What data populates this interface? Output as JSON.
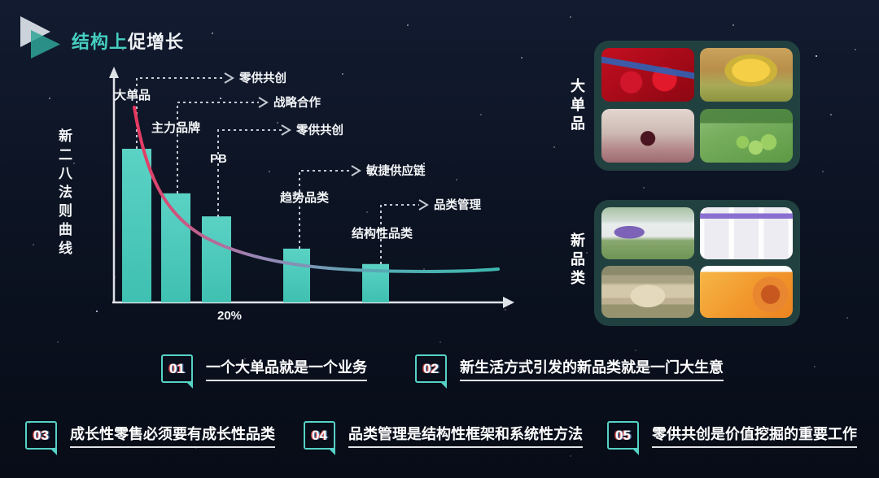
{
  "title": {
    "highlight": "结构上",
    "rest": "促增长"
  },
  "icons": {
    "header": "play-triangles-icon"
  },
  "chart_data": {
    "type": "bar",
    "title": "新二八法则曲线",
    "categories": [
      "大单品",
      "主力品牌",
      "PB",
      "趋势品类",
      "结构性品类"
    ],
    "values": [
      100,
      71,
      56,
      35,
      25
    ],
    "value_note": "relative bar heights, no numeric axis shown",
    "x_tick_label": "20%",
    "callouts": [
      {
        "from": "大单品",
        "label": "零供共创"
      },
      {
        "from": "主力品牌",
        "label": "战略合作"
      },
      {
        "from": "PB",
        "label": "零供共创"
      },
      {
        "from": "趋势品类",
        "label": "敏捷供应链"
      },
      {
        "from": "结构性品类",
        "label": "品类管理"
      }
    ],
    "curve": "pareto-decay from top-left to bottom-right",
    "legend_position": "none",
    "grid": false,
    "colors": {
      "bar": "#4cccbe",
      "curve_start": "#e8385f",
      "curve_mid": "#9b85b5",
      "curve_end": "#3db8ae",
      "axis": "#dfe3e8"
    }
  },
  "panels": [
    {
      "label": "大单品",
      "images": [
        "cherries-promo",
        "durian",
        "cherry-in-hand",
        "green-grapes"
      ]
    },
    {
      "label": "新品类",
      "images": [
        "rv-camping",
        "ecommerce-app",
        "camping-tent",
        "snack-gift-promo"
      ]
    }
  ],
  "points": [
    {
      "num": "01",
      "text": "一个大单品就是一个业务"
    },
    {
      "num": "02",
      "text": "新生活方式引发的新品类就是一门大生意"
    },
    {
      "num": "03",
      "text": "成长性零售必须要有成长性品类"
    },
    {
      "num": "04",
      "text": "品类管理是结构性框架和系统性方法"
    },
    {
      "num": "05",
      "text": "零供共创是价值挖掘的重要工作"
    }
  ],
  "colors": {
    "accent_teal": "#45cfc0",
    "badge_border": "#56d2c6",
    "background": "#0a0f1e",
    "panel_bg": "#214140"
  }
}
